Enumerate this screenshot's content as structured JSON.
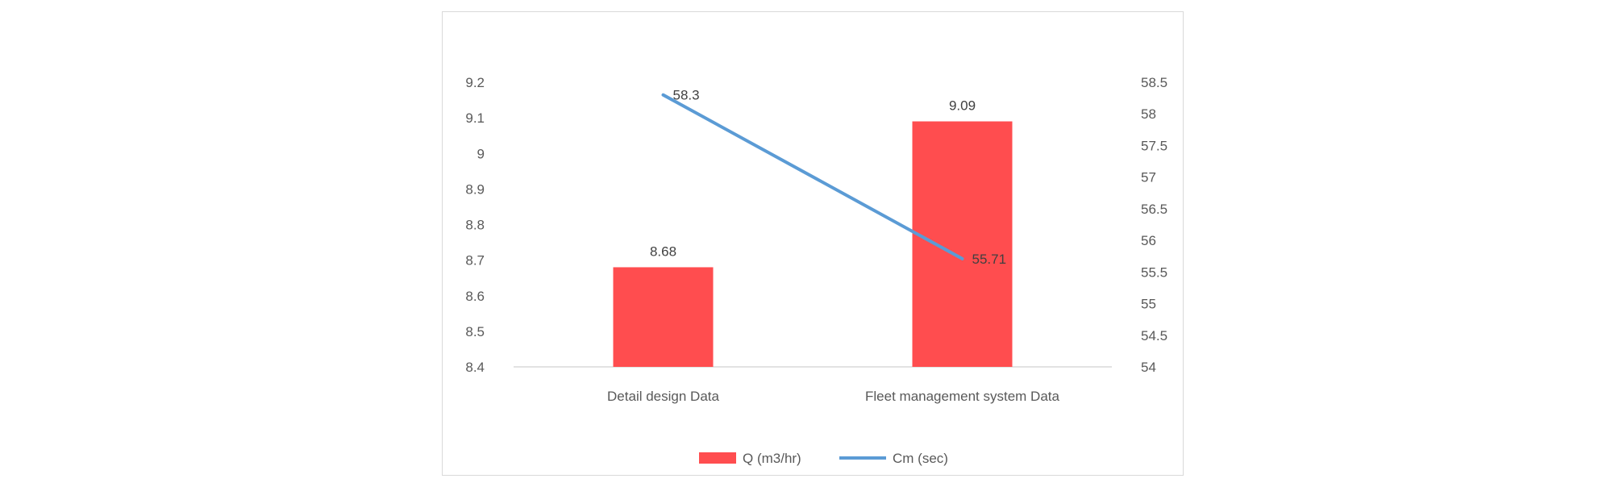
{
  "chart_data": {
    "type": "bar+line",
    "categories": [
      "Detail design Data",
      "Fleet management system Data"
    ],
    "series": [
      {
        "name": "Q (m3/hr)",
        "type": "bar",
        "axis": "left",
        "color": "#ff4d4f",
        "values": [
          8.68,
          9.09
        ],
        "labels": [
          "8.68",
          "9.09"
        ]
      },
      {
        "name": "Cm (sec)",
        "type": "line",
        "axis": "right",
        "color": "#5b9bd5",
        "values": [
          58.3,
          55.71
        ],
        "labels": [
          "58.3",
          "55.71"
        ]
      }
    ],
    "y_left": {
      "min": 8.4,
      "max": 9.2,
      "ticks": [
        "8.4",
        "8.5",
        "8.6",
        "8.7",
        "8.8",
        "8.9",
        "9",
        "9.1",
        "9.2"
      ]
    },
    "y_right": {
      "min": 54,
      "max": 58.5,
      "ticks": [
        "54",
        "54.5",
        "55",
        "55.5",
        "56",
        "56.5",
        "57",
        "57.5",
        "58",
        "58.5"
      ]
    },
    "grid": false,
    "legend_position": "bottom"
  }
}
